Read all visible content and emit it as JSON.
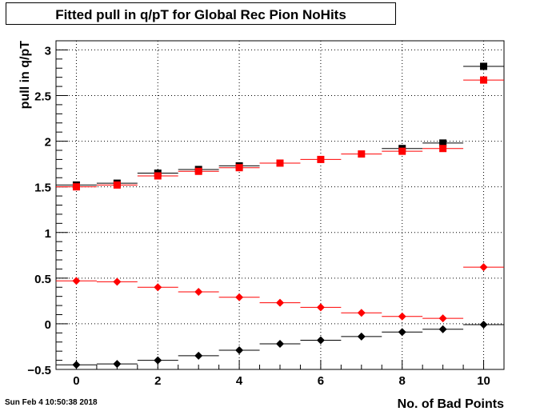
{
  "title": "Fitted pull in q/pT  for Global Rec Pion NoHits",
  "footer": "Sun Feb  4 10:50:38 2018",
  "chart_data": {
    "type": "scatter",
    "title": "Fitted pull in q/pT  for Global Rec Pion NoHits",
    "xlabel": "No. of Bad Points",
    "ylabel": "pull in q/pT",
    "xlim": [
      -0.5,
      10.5
    ],
    "ylim": [
      -0.5,
      3.1
    ],
    "grid": true,
    "x_ticks": [
      "0",
      "2",
      "4",
      "6",
      "8",
      "10"
    ],
    "y_ticks": [
      "−0.5",
      "0",
      "0.5",
      "1",
      "1.5",
      "2",
      "2.5",
      "3"
    ],
    "x": [
      0,
      1,
      2,
      3,
      4,
      5,
      6,
      7,
      8,
      9,
      10
    ],
    "series": [
      {
        "color": "#000000",
        "marker": "square",
        "values": [
          1.52,
          1.54,
          1.65,
          1.69,
          1.73,
          null,
          null,
          null,
          1.92,
          1.98,
          2.82
        ]
      },
      {
        "color": "#ff0000",
        "marker": "square",
        "values": [
          1.5,
          1.52,
          1.62,
          1.67,
          1.71,
          1.76,
          1.8,
          1.86,
          1.89,
          1.92,
          2.67
        ]
      },
      {
        "color": "#ff0000",
        "marker": "diamond",
        "values": [
          0.47,
          0.46,
          0.4,
          0.35,
          0.29,
          0.23,
          0.18,
          0.12,
          0.08,
          0.06,
          0.62
        ]
      },
      {
        "color": "#000000",
        "marker": "diamond",
        "values": [
          -0.45,
          -0.44,
          -0.4,
          -0.35,
          -0.29,
          -0.22,
          -0.18,
          -0.14,
          -0.09,
          -0.06,
          -0.01
        ]
      }
    ]
  }
}
